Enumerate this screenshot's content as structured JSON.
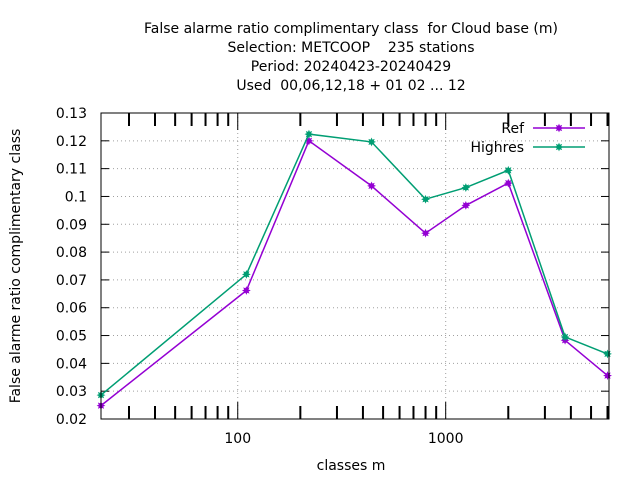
{
  "chart_data": {
    "type": "line",
    "title_lines": [
      "False alarme ratio complimentary class  for Cloud base (m)",
      "Selection: METCOOP    235 stations",
      "Period: 20240423-20240429",
      "Used  00,06,12,18 + 01 02 ... 12"
    ],
    "xlabel": "classes m",
    "ylabel": "False alarme ratio complimentary class",
    "xscale": "log",
    "xlim": [
      22,
      6100
    ],
    "ylim": [
      0.02,
      0.13
    ],
    "yticks": [
      "0.02",
      "0.03",
      "0.04",
      "0.05",
      "0.06",
      "0.07",
      "0.08",
      "0.09",
      "0.1",
      "0.11",
      "0.12",
      "0.13"
    ],
    "xticks": [
      "100",
      "1000"
    ],
    "x": [
      22,
      110,
      220,
      440,
      800,
      1250,
      2000,
      3750,
      6000
    ],
    "series": [
      {
        "name": "Ref",
        "color": "#9400d3",
        "values": [
          0.0248,
          0.0662,
          0.12,
          0.1038,
          0.0868,
          0.0968,
          0.1048,
          0.0483,
          0.0356
        ]
      },
      {
        "name": "Highres",
        "color": "#009e73",
        "values": [
          0.0286,
          0.072,
          0.1224,
          0.1196,
          0.099,
          0.1032,
          0.1094,
          0.0495,
          0.0434
        ]
      }
    ],
    "grid": true,
    "legend_position": "top-right"
  }
}
